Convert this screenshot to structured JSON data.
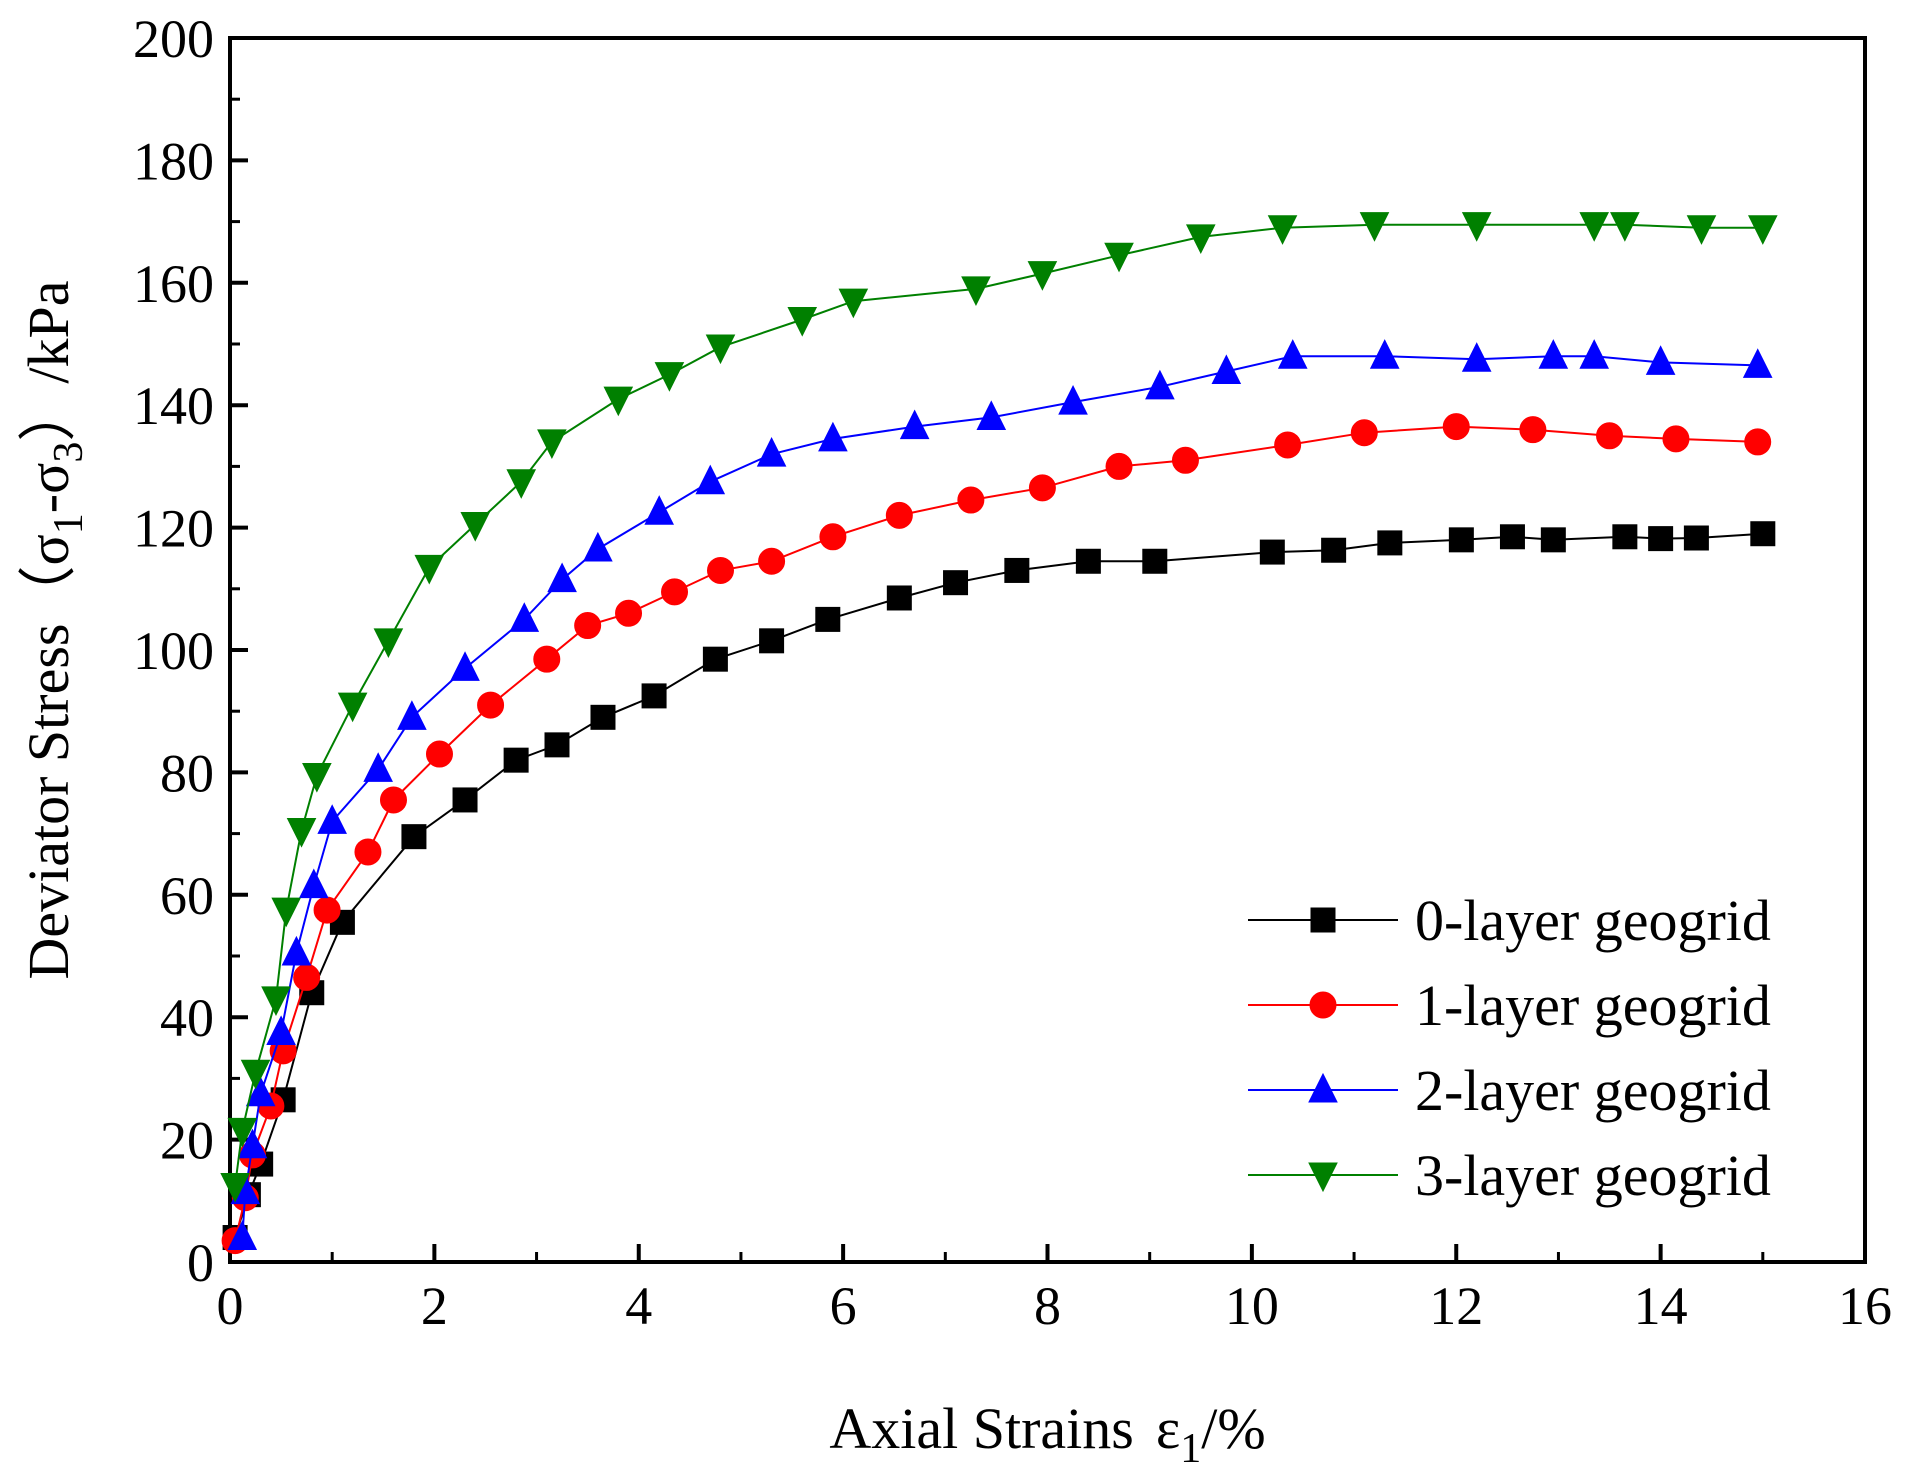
{
  "chart_data": {
    "type": "line",
    "title": "",
    "xlabel": "Axial Strains",
    "xlabel_symbol": "ε",
    "xlabel_sub": "1",
    "xlabel_unit": "/%",
    "ylabel_prefix": "Deviator Stress（σ",
    "ylabel_sub1": "1",
    "ylabel_mid": "-σ",
    "ylabel_sub2": "3",
    "ylabel_suffix": "）/kPa",
    "xlim": [
      0,
      16
    ],
    "ylim": [
      0,
      200
    ],
    "xticks": [
      0,
      2,
      4,
      6,
      8,
      10,
      12,
      14,
      16
    ],
    "yticks": [
      0,
      20,
      40,
      60,
      80,
      100,
      120,
      140,
      160,
      180,
      200
    ],
    "xtick_labels": [
      "0",
      "2",
      "4",
      "6",
      "8",
      "10",
      "12",
      "14",
      "16"
    ],
    "ytick_labels": [
      "0",
      "20",
      "40",
      "60",
      "80",
      "100",
      "120",
      "140",
      "160",
      "180",
      "200"
    ],
    "legend_position": "bottom-right",
    "series": [
      {
        "name": "0-layer geogrid",
        "color": "#000000",
        "marker": "square",
        "x": [
          0.05,
          0.18,
          0.3,
          0.52,
          0.8,
          1.1,
          1.8,
          2.3,
          2.8,
          3.2,
          3.65,
          4.15,
          4.75,
          5.3,
          5.85,
          6.55,
          7.1,
          7.7,
          8.4,
          9.05,
          10.2,
          10.8,
          11.35,
          12.05,
          12.55,
          12.95,
          13.65,
          14.0,
          14.35,
          15.0
        ],
        "y": [
          4,
          11,
          16,
          26.5,
          44,
          55.5,
          69.5,
          75.5,
          82,
          84.5,
          89,
          92.5,
          98.5,
          101.5,
          105,
          108.5,
          111,
          113,
          114.5,
          114.5,
          116,
          116.3,
          117.5,
          118,
          118.5,
          118,
          118.5,
          118.2,
          118.3,
          119
        ]
      },
      {
        "name": "1-layer geogrid",
        "color": "#ff0000",
        "marker": "circle",
        "x": [
          0.05,
          0.15,
          0.22,
          0.4,
          0.52,
          0.75,
          0.95,
          1.35,
          1.6,
          2.05,
          2.55,
          3.1,
          3.5,
          3.9,
          4.35,
          4.8,
          5.3,
          5.9,
          6.55,
          7.25,
          7.95,
          8.7,
          9.35,
          10.35,
          11.1,
          12.0,
          12.75,
          13.5,
          14.15,
          14.95
        ],
        "y": [
          3.5,
          10.5,
          17.5,
          25.5,
          34.5,
          46.5,
          57.5,
          67,
          75.5,
          83,
          91,
          98.5,
          104,
          106,
          109.5,
          113,
          114.5,
          118.5,
          122,
          124.5,
          126.5,
          130,
          131,
          133.5,
          135.5,
          136.5,
          136,
          135,
          134.5,
          134
        ]
      },
      {
        "name": "2-layer geogrid",
        "color": "#0000ff",
        "marker": "triangle-up",
        "x": [
          0.12,
          0.15,
          0.22,
          0.3,
          0.5,
          0.65,
          0.82,
          1.0,
          1.45,
          1.78,
          2.3,
          2.88,
          3.25,
          3.6,
          4.2,
          4.7,
          5.3,
          5.9,
          6.7,
          7.45,
          8.25,
          9.1,
          9.75,
          10.4,
          11.3,
          12.2,
          12.95,
          13.35,
          14.0,
          14.95
        ],
        "y": [
          4,
          11.5,
          19,
          27.5,
          37.5,
          50.5,
          61.5,
          72,
          80.5,
          89,
          97,
          105,
          111.5,
          116.5,
          122.5,
          127.5,
          132,
          134.5,
          136.5,
          138,
          140.5,
          143,
          145.5,
          148,
          148,
          147.5,
          148,
          148,
          147,
          146.5
        ]
      },
      {
        "name": "3-layer geogrid",
        "color": "#008000",
        "marker": "triangle-down",
        "x": [
          0.05,
          0.12,
          0.25,
          0.45,
          0.55,
          0.7,
          0.85,
          1.2,
          1.55,
          1.95,
          2.4,
          2.85,
          3.15,
          3.8,
          4.3,
          4.8,
          5.6,
          6.1,
          7.3,
          7.95,
          8.7,
          9.5,
          10.3,
          11.2,
          12.2,
          13.35,
          13.65,
          14.4,
          15.0
        ],
        "y": [
          12.5,
          21.5,
          31,
          43,
          57.5,
          70.5,
          79.5,
          91,
          101.5,
          113.5,
          120.5,
          127.5,
          134,
          141,
          145,
          149.5,
          154,
          157,
          159,
          161.5,
          164.5,
          167.5,
          169,
          169.5,
          169.5,
          169.5,
          169.5,
          169,
          169
        ]
      }
    ]
  }
}
